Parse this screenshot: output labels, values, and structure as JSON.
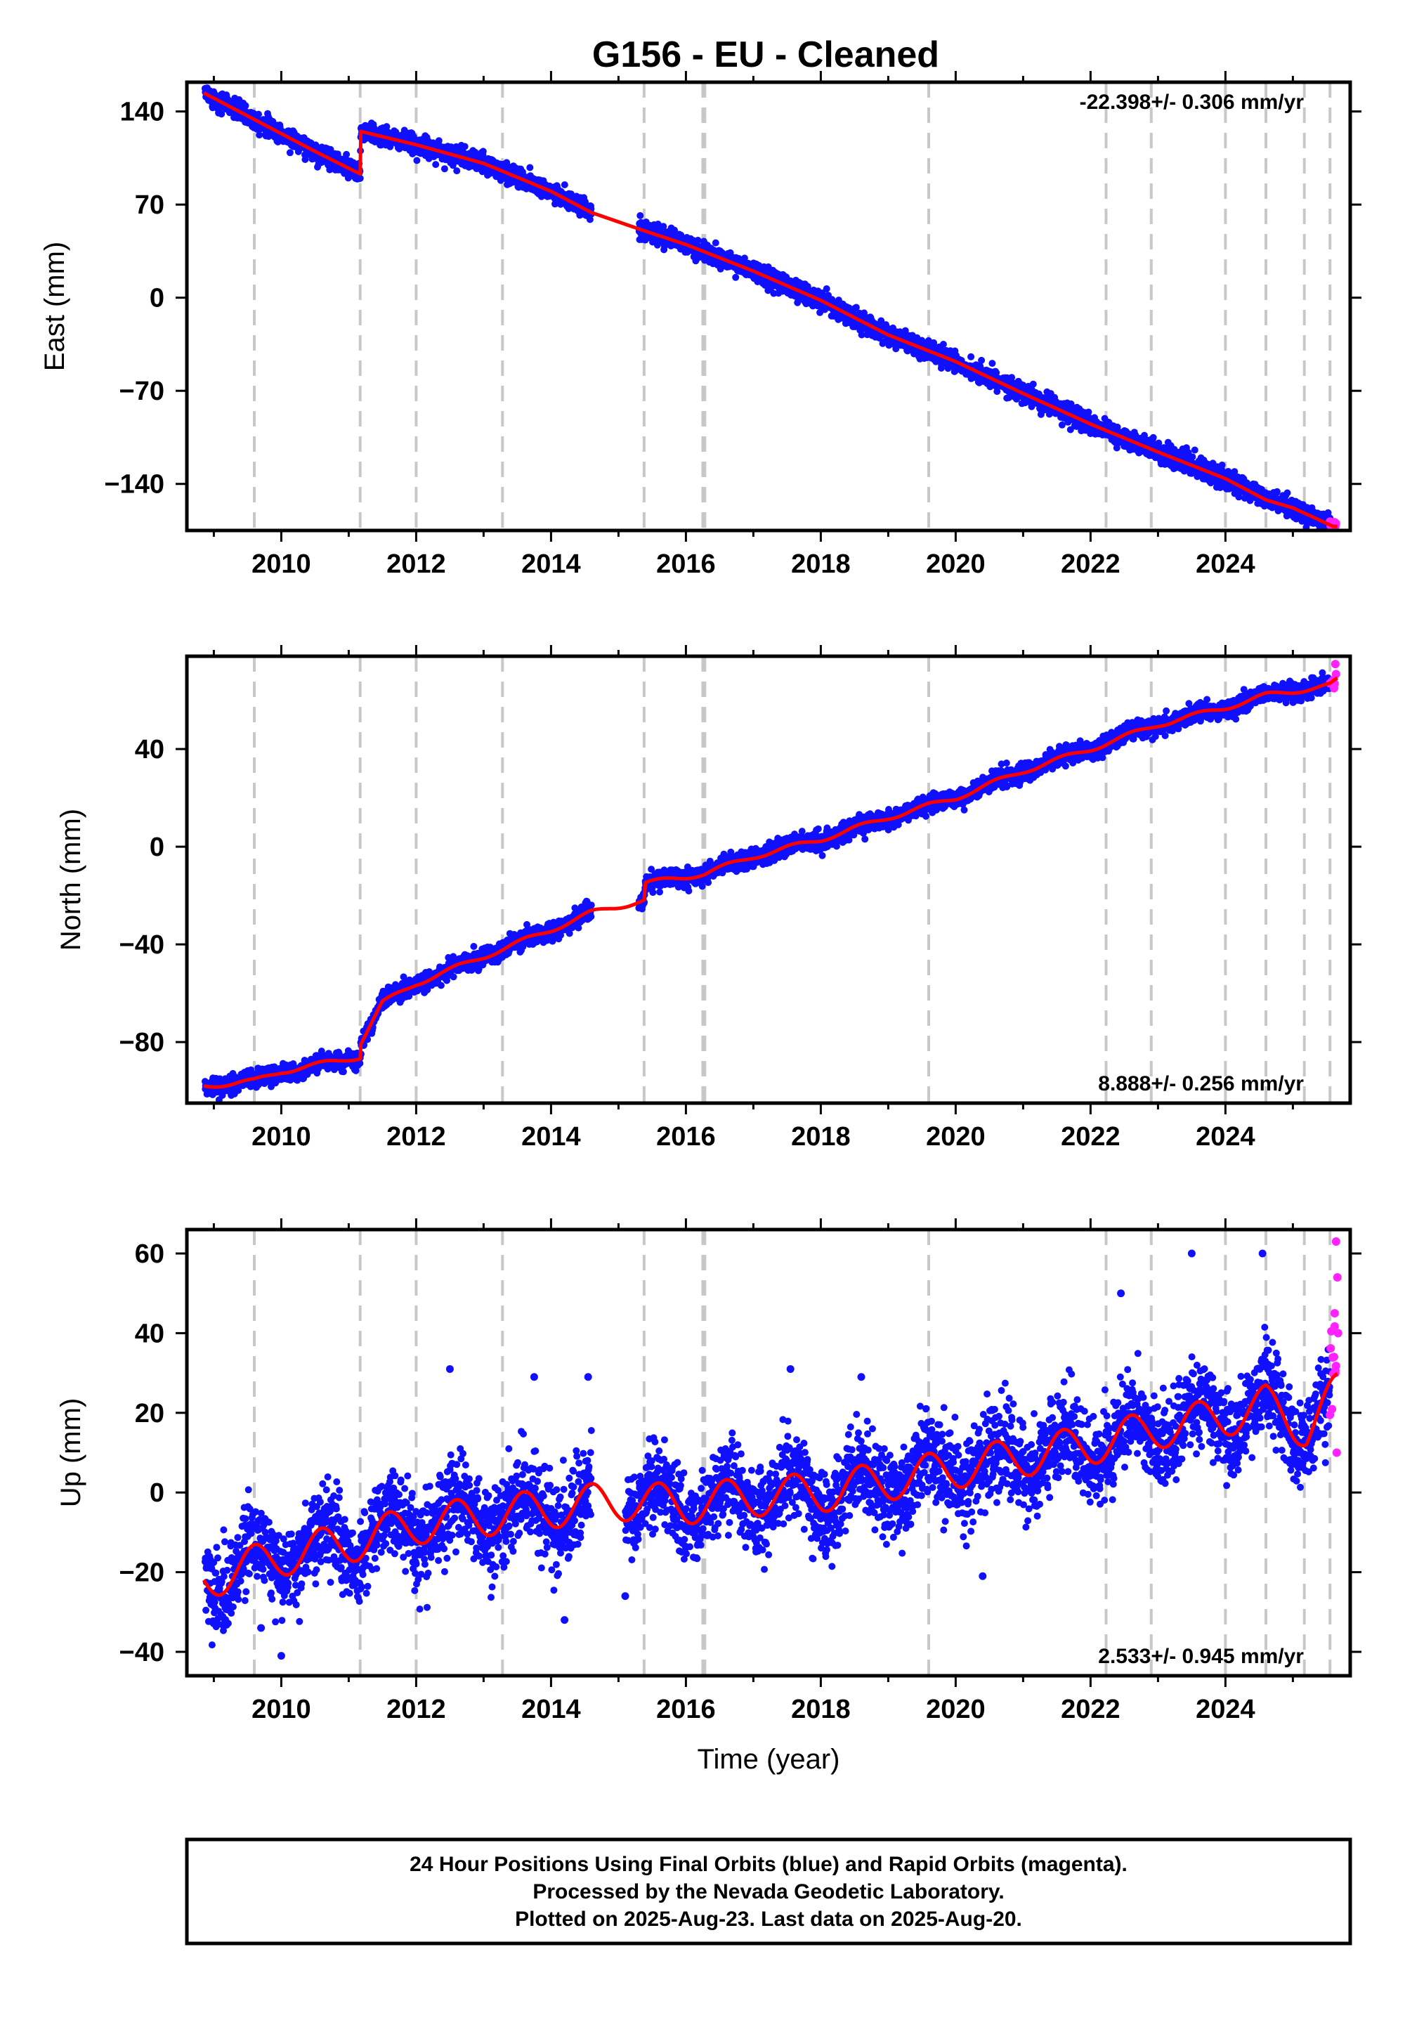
{
  "title": "G156  - EU - Cleaned",
  "colors": {
    "final_orbits": "#1010ff",
    "rapid_orbits": "#ff22ff",
    "model": "#ff0000",
    "event_lines": "#c8c8c8",
    "frame": "#000000"
  },
  "footer": {
    "line1": "24 Hour Positions Using Final Orbits (blue) and Rapid Orbits (magenta).",
    "line2": "Processed by the Nevada Geodetic Laboratory.",
    "line3": "Plotted on 2025-Aug-23. Last data on 2025-Aug-20."
  },
  "chart_data": [
    {
      "type": "scatter",
      "panel": "east",
      "ylabel": "East (mm)",
      "xlabel": "",
      "rate_label": "-22.398+/- 0.306 mm/yr",
      "rate_placement": "top-right",
      "xlim": [
        2008.6,
        2025.85
      ],
      "ylim": [
        -175,
        162
      ],
      "xticks": [
        2010,
        2012,
        2014,
        2016,
        2018,
        2020,
        2022,
        2024
      ],
      "xtick_labels": [
        "2010",
        "2012",
        "2014",
        "2016",
        "2018",
        "2020",
        "2022",
        "2024"
      ],
      "yticks": [
        140,
        70,
        0,
        -70,
        -140
      ],
      "ytick_labels": [
        "140",
        "70",
        "0",
        "−70",
        "−140"
      ],
      "event_lines": [
        2009.6,
        2011.17,
        2012.0,
        2013.28,
        2015.38,
        2016.25,
        2016.28,
        2019.6,
        2022.23,
        2022.9,
        2024.0,
        2024.6,
        2025.17,
        2025.55
      ],
      "model_trend": [
        [
          2008.85,
          154
        ],
        [
          2009.6,
          134
        ],
        [
          2010.5,
          110
        ],
        [
          2011.17,
          93
        ],
        [
          2011.18,
          125
        ],
        [
          2012.0,
          115
        ],
        [
          2013.0,
          101
        ],
        [
          2014.0,
          80
        ],
        [
          2014.6,
          64
        ],
        [
          2015.4,
          50
        ],
        [
          2016.0,
          40
        ],
        [
          2017.0,
          20
        ],
        [
          2018.0,
          -2
        ],
        [
          2019.0,
          -28
        ],
        [
          2020.0,
          -48
        ],
        [
          2021.0,
          -72
        ],
        [
          2022.0,
          -95
        ],
        [
          2023.0,
          -116
        ],
        [
          2024.0,
          -136
        ],
        [
          2024.6,
          -152
        ],
        [
          2025.0,
          -158
        ],
        [
          2025.6,
          -172
        ]
      ],
      "series": [
        {
          "name": "Final Orbits",
          "color": "#1010ff",
          "noise": 3.5,
          "outliers": []
        },
        {
          "name": "Rapid Orbits",
          "color": "#ff22ff",
          "x_from": 2025.55,
          "noise": 3,
          "outliers": []
        }
      ],
      "gaps": [
        [
          2014.6,
          2015.3
        ]
      ],
      "seasonal_amp": 0,
      "model_width": 5
    },
    {
      "type": "scatter",
      "panel": "north",
      "ylabel": "North (mm)",
      "xlabel": "",
      "rate_label": "8.888+/- 0.256 mm/yr",
      "rate_placement": "bottom-right",
      "xlim": [
        2008.6,
        2025.85
      ],
      "ylim": [
        -105,
        78
      ],
      "xticks": [
        2010,
        2012,
        2014,
        2016,
        2018,
        2020,
        2022,
        2024
      ],
      "xtick_labels": [
        "2010",
        "2012",
        "2014",
        "2016",
        "2018",
        "2020",
        "2022",
        "2024"
      ],
      "yticks": [
        40,
        0,
        -40,
        -80
      ],
      "ytick_labels": [
        "40",
        "0",
        "−40",
        "−80"
      ],
      "event_lines": [
        2009.6,
        2011.17,
        2012.0,
        2013.28,
        2015.38,
        2016.25,
        2016.28,
        2019.6,
        2022.23,
        2022.9,
        2024.0,
        2024.6,
        2025.17,
        2025.55
      ],
      "model_trend": [
        [
          2008.85,
          -98
        ],
        [
          2009.6,
          -96
        ],
        [
          2010.0,
          -92
        ],
        [
          2011.17,
          -86
        ],
        [
          2011.18,
          -80
        ],
        [
          2011.5,
          -64
        ],
        [
          2012.0,
          -56
        ],
        [
          2013.0,
          -45
        ],
        [
          2014.0,
          -34
        ],
        [
          2014.6,
          -27
        ],
        [
          2015.38,
          -22
        ],
        [
          2015.4,
          -15
        ],
        [
          2016.28,
          -11
        ],
        [
          2017.0,
          -4
        ],
        [
          2018.0,
          3
        ],
        [
          2019.0,
          12
        ],
        [
          2020.0,
          20
        ],
        [
          2021.0,
          31
        ],
        [
          2022.0,
          40
        ],
        [
          2023.0,
          50
        ],
        [
          2024.0,
          57
        ],
        [
          2024.6,
          62
        ],
        [
          2025.55,
          66
        ],
        [
          2025.8,
          71
        ]
      ],
      "series": [
        {
          "name": "Final Orbits",
          "color": "#1010ff",
          "noise": 1.8,
          "outliers": []
        },
        {
          "name": "Rapid Orbits",
          "color": "#ff22ff",
          "x_from": 2025.55,
          "noise": 3,
          "outliers": []
        }
      ],
      "gaps": [
        [
          2014.6,
          2015.3
        ]
      ],
      "seasonal_amp": 1,
      "model_width": 5
    },
    {
      "type": "scatter",
      "panel": "up",
      "ylabel": "Up (mm)",
      "xlabel": "Time (year)",
      "rate_label": "2.533+/- 0.945 mm/yr",
      "rate_placement": "bottom-right",
      "xlim": [
        2008.6,
        2025.85
      ],
      "ylim": [
        -46,
        66
      ],
      "xticks": [
        2010,
        2012,
        2014,
        2016,
        2018,
        2020,
        2022,
        2024
      ],
      "xtick_labels": [
        "2010",
        "2012",
        "2014",
        "2016",
        "2018",
        "2020",
        "2022",
        "2024"
      ],
      "yticks": [
        60,
        40,
        20,
        0,
        -20,
        -40
      ],
      "ytick_labels": [
        "60",
        "40",
        "20",
        "0",
        "−20",
        "−40"
      ],
      "event_lines": [
        2009.6,
        2011.17,
        2012.0,
        2013.28,
        2015.38,
        2016.25,
        2016.28,
        2019.6,
        2022.23,
        2022.9,
        2024.0,
        2024.6,
        2025.17,
        2025.55
      ],
      "model_trend": [
        [
          2008.85,
          -22
        ],
        [
          2010.0,
          -16
        ],
        [
          2011.17,
          -12
        ],
        [
          2012.0,
          -8
        ],
        [
          2013.0,
          -6
        ],
        [
          2014.0,
          -4
        ],
        [
          2015.0,
          -2
        ],
        [
          2016.0,
          -3
        ],
        [
          2017.0,
          -1
        ],
        [
          2018.0,
          0
        ],
        [
          2019.0,
          3
        ],
        [
          2020.0,
          6
        ],
        [
          2021.0,
          9
        ],
        [
          2022.0,
          12
        ],
        [
          2023.0,
          16
        ],
        [
          2024.0,
          19
        ],
        [
          2024.6,
          22
        ],
        [
          2025.2,
          16
        ],
        [
          2025.7,
          26
        ]
      ],
      "series": [
        {
          "name": "Final Orbits",
          "color": "#1010ff",
          "noise": 5.5,
          "outliers": [
            [
              2012.5,
              31
            ],
            [
              2013.75,
              29
            ],
            [
              2014.55,
              29
            ],
            [
              2017.55,
              31
            ],
            [
              2018.6,
              29
            ],
            [
              2022.45,
              50
            ],
            [
              2023.5,
              60
            ],
            [
              2024.55,
              60
            ],
            [
              2020.4,
              -21
            ],
            [
              2009.7,
              -34
            ],
            [
              2010.0,
              -41
            ],
            [
              2014.2,
              -32
            ],
            [
              2015.1,
              -26
            ]
          ]
        },
        {
          "name": "Rapid Orbits",
          "color": "#ff22ff",
          "x_from": 2025.55,
          "noise": 8,
          "outliers": [
            [
              2025.64,
              63
            ],
            [
              2025.66,
              54
            ],
            [
              2025.62,
              45
            ],
            [
              2025.67,
              40
            ],
            [
              2025.63,
              30
            ],
            [
              2025.65,
              10
            ]
          ]
        }
      ],
      "gaps": [
        [
          2014.6,
          2015.1
        ]
      ],
      "seasonal_amp": 5,
      "model_width": 5
    }
  ]
}
